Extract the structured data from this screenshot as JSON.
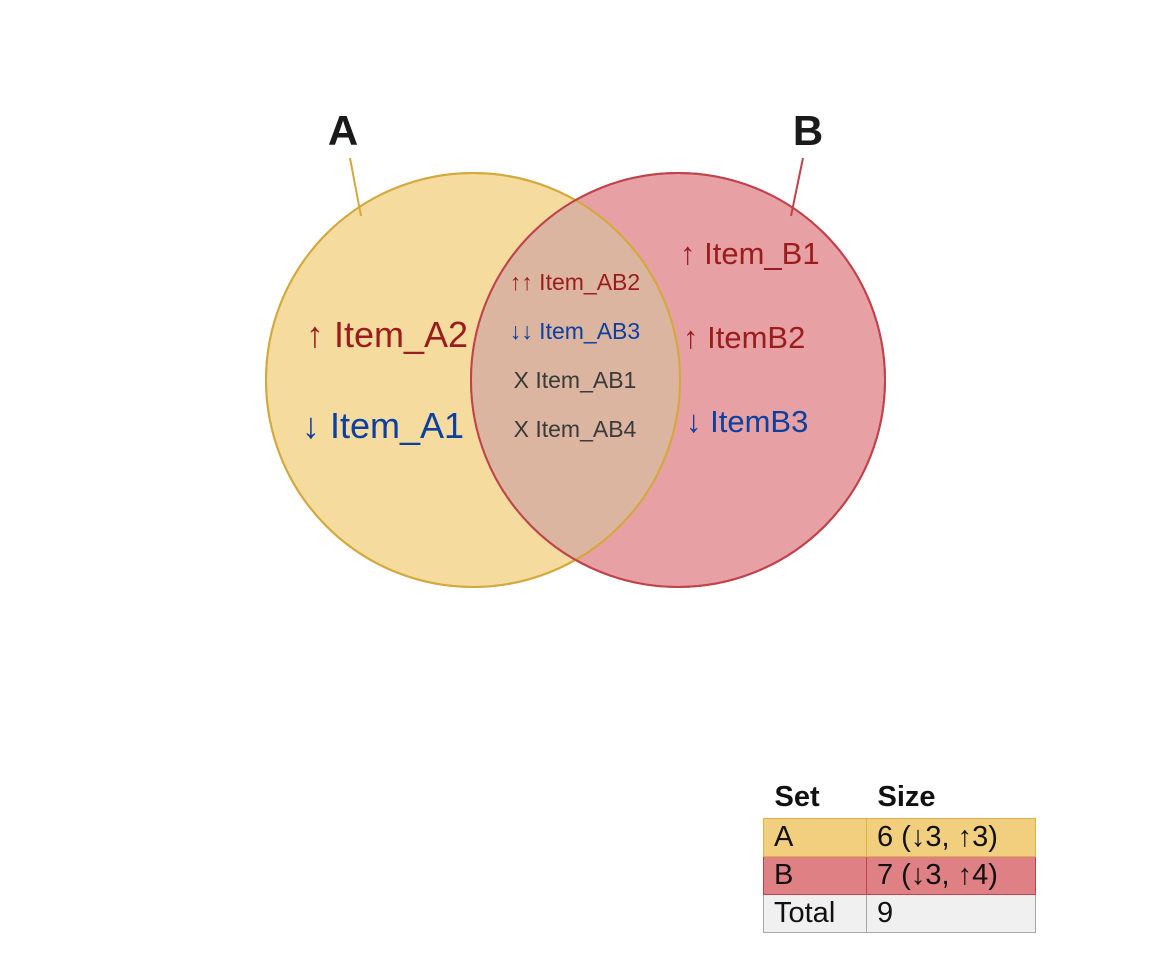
{
  "sets": {
    "a": {
      "label": "A",
      "fill": "#f2cf7e",
      "stroke": "#d4a93c"
    },
    "b": {
      "label": "B",
      "fill": "#df8085",
      "stroke": "#c0434b"
    }
  },
  "regions": {
    "a_only": [
      {
        "text": "↑ Item_A2",
        "color": "#9b1c1c"
      },
      {
        "text": "↓ Item_A1",
        "color": "#0b3fa0"
      }
    ],
    "b_only": [
      {
        "text": "↑ Item_B1",
        "color": "#9b1c1c"
      },
      {
        "text": "↑ ItemB2",
        "color": "#9b1c1c"
      },
      {
        "text": "↓ ItemB3",
        "color": "#0b3fa0"
      }
    ],
    "ab": [
      {
        "text": "↑↑ Item_AB2",
        "color": "#9b1c1c"
      },
      {
        "text": "↓↓ Item_AB3",
        "color": "#0b3fa0"
      },
      {
        "text": "X Item_AB1",
        "color": "#3a3a3a"
      },
      {
        "text": "X Item_AB4",
        "color": "#3a3a3a"
      }
    ]
  },
  "legend": {
    "header_set": "Set",
    "header_size": "Size",
    "rows": [
      {
        "set": "A",
        "size": "6 (↓3, ↑3)"
      },
      {
        "set": "B",
        "size": "7 (↓3, ↑4)"
      },
      {
        "set": "Total",
        "size": "9"
      }
    ]
  }
}
